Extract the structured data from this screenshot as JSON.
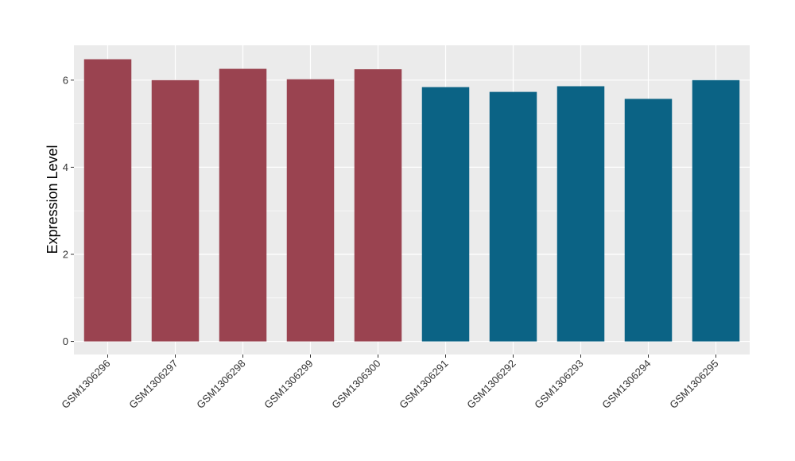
{
  "chart_data": {
    "type": "bar",
    "title": "",
    "xlabel": "",
    "ylabel": "Expression Level",
    "categories": [
      "GSM1306296",
      "GSM1306297",
      "GSM1306298",
      "GSM1306299",
      "GSM1306300",
      "GSM1306291",
      "GSM1306292",
      "GSM1306293",
      "GSM1306294",
      "GSM1306295"
    ],
    "values": [
      6.48,
      6.0,
      6.26,
      6.02,
      6.25,
      5.84,
      5.73,
      5.86,
      5.57,
      6.0
    ],
    "bar_colors": [
      "#9a4350",
      "#9a4350",
      "#9a4350",
      "#9a4350",
      "#9a4350",
      "#0b6385",
      "#0b6385",
      "#0b6385",
      "#0b6385",
      "#0b6385"
    ],
    "ylim": [
      -0.3,
      6.8
    ],
    "yticks": [
      0,
      2,
      4,
      6
    ],
    "ytick_labels": [
      "0",
      "2",
      "4",
      "6"
    ],
    "panel_background": "#ebebeb",
    "grid_color": "#ffffff",
    "grid": true,
    "legend": "none"
  }
}
